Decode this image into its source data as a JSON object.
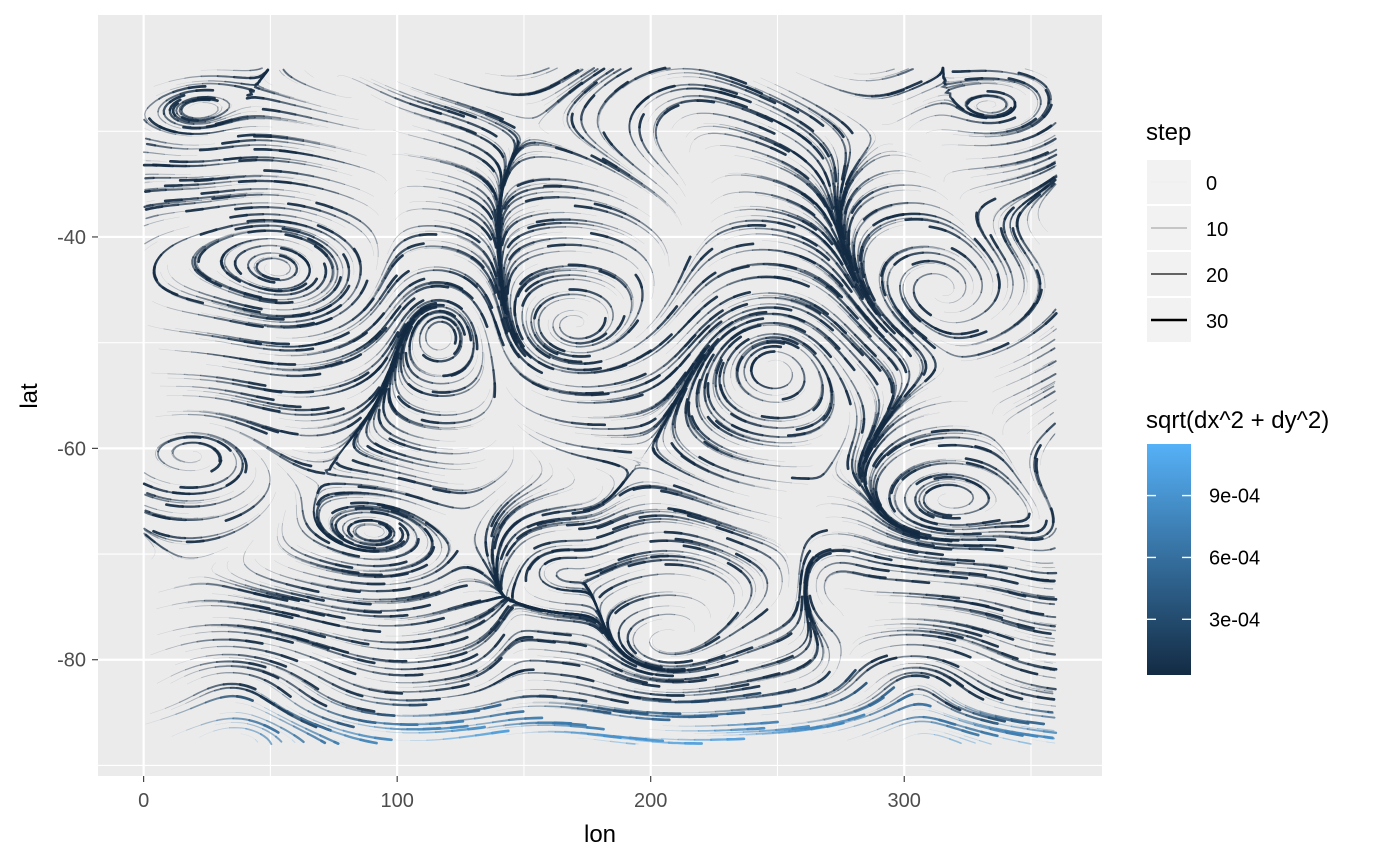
{
  "chart_data": {
    "type": "streamline",
    "xlabel": "lon",
    "ylabel": "lat",
    "xlim": [
      -18,
      378
    ],
    "ylim": [
      -91,
      -19
    ],
    "x_ticks": [
      0,
      100,
      200,
      300
    ],
    "x_tick_labels": [
      "0",
      "100",
      "200",
      "300"
    ],
    "y_ticks": [
      -40,
      -60,
      -80
    ],
    "y_tick_labels": [
      "-40",
      "-60",
      "-80"
    ],
    "grid": true,
    "panel_background": "#ebebeb",
    "grid_color": "#ffffff",
    "stream_color_low": "#132b43",
    "stream_color_high": "#56b1f7",
    "legend_position": "right",
    "legends": {
      "step": {
        "title": "step",
        "entries": [
          {
            "label": "0",
            "value": 0
          },
          {
            "label": "10",
            "value": 10
          },
          {
            "label": "20",
            "value": 20
          },
          {
            "label": "30",
            "value": 30
          }
        ]
      },
      "magnitude": {
        "title": "sqrt(dx^2 + dy^2)",
        "breaks": [
          {
            "label": "9e-04",
            "value": 0.0009
          },
          {
            "label": "6e-04",
            "value": 0.0006
          },
          {
            "label": "3e-04",
            "value": 0.0003
          }
        ],
        "range": [
          3e-05,
          0.00115
        ]
      }
    },
    "vortices": [
      {
        "lon": 58,
        "lat": -43,
        "rx": 20,
        "ry": 9,
        "strength": 1
      },
      {
        "lon": 118,
        "lat": -48,
        "rx": 16,
        "ry": 10,
        "strength": -1
      },
      {
        "lon": 168,
        "lat": -49,
        "rx": 14,
        "ry": 7,
        "strength": 1
      },
      {
        "lon": 246,
        "lat": -51,
        "rx": 20,
        "ry": 10,
        "strength": -1
      },
      {
        "lon": 312,
        "lat": -65,
        "rx": 14,
        "ry": 6,
        "strength": 1
      },
      {
        "lon": 40,
        "lat": -81,
        "rx": 30,
        "ry": 6,
        "strength": -1
      },
      {
        "lon": 200,
        "lat": -81,
        "rx": 22,
        "ry": 7,
        "strength": 1
      },
      {
        "lon": 305,
        "lat": -80,
        "rx": 20,
        "ry": 6,
        "strength": -1
      },
      {
        "lon": 162,
        "lat": -72,
        "rx": 10,
        "ry": 5,
        "strength": 1
      },
      {
        "lon": 28,
        "lat": -60,
        "rx": 18,
        "ry": 8,
        "strength": -1
      },
      {
        "lon": 20,
        "lat": -28,
        "rx": 14,
        "ry": 5,
        "strength": -1
      },
      {
        "lon": 340,
        "lat": -28,
        "rx": 16,
        "ry": 5,
        "strength": 1
      },
      {
        "lon": 272,
        "lat": -72,
        "rx": 10,
        "ry": 5,
        "strength": -1
      },
      {
        "lon": 95,
        "lat": -68,
        "rx": 14,
        "ry": 4,
        "strength": 1
      }
    ]
  }
}
